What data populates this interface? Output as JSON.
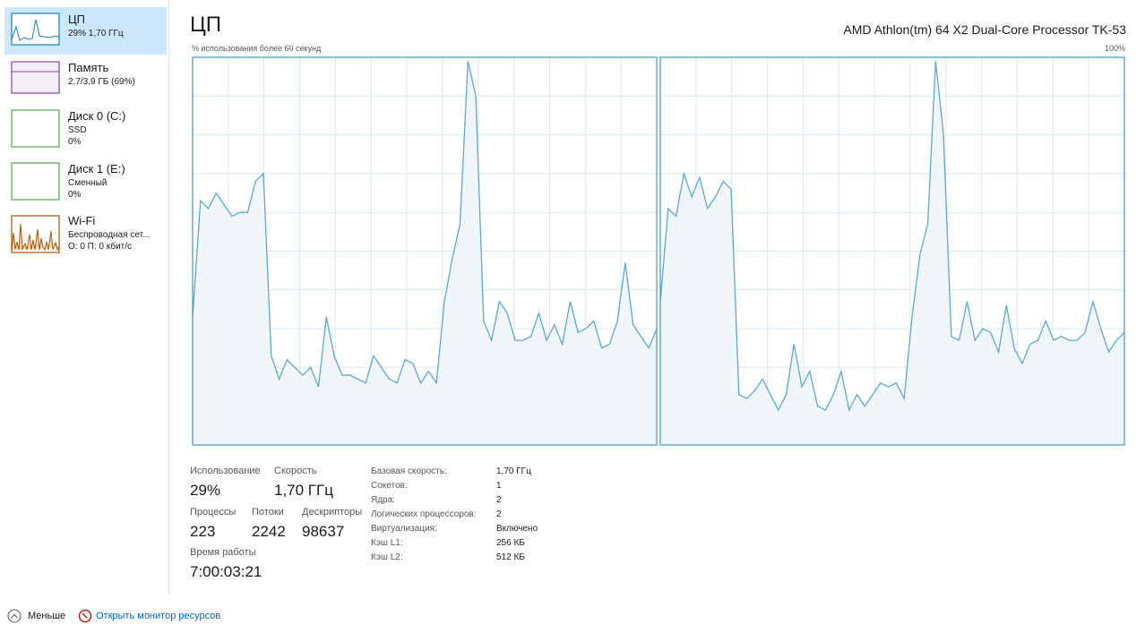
{
  "sidebar": [
    {
      "title": "ЦП",
      "details": [
        "29% 1,70 ГГц"
      ]
    },
    {
      "title": "Память",
      "details": [
        "2,7/3,9 ГБ (69%)"
      ]
    },
    {
      "title": "Диск 0 (C:)",
      "details": [
        "SSD",
        "0%"
      ]
    },
    {
      "title": "Диск 1 (E:)",
      "details": [
        "Сменный",
        "0%"
      ]
    },
    {
      "title": "Wi-Fi",
      "details": [
        "Беспроводная сет...",
        "О: 0 П: 0 кбит/с"
      ]
    }
  ],
  "header": {
    "title": "ЦП",
    "processor": "AMD Athlon(tm) 64 X2 Dual-Core Processor TK-53",
    "graph_caption": "% использования более 60 секунд",
    "graph_max": "100%"
  },
  "graphs": [
    {
      "ylim": [
        0,
        100
      ],
      "color": "#5ca8d0",
      "values": [
        33,
        63,
        61,
        65,
        62,
        59,
        60,
        60,
        68,
        70,
        23,
        17,
        22,
        20,
        18,
        20,
        15,
        33,
        23,
        18,
        18,
        17,
        16,
        23,
        20,
        17,
        16,
        22,
        21,
        16,
        19,
        16,
        37,
        48,
        57,
        99,
        90,
        32,
        27,
        37,
        34,
        27,
        27,
        28,
        34,
        27,
        31,
        26,
        37,
        29,
        30,
        32,
        25,
        26,
        32,
        47,
        31,
        28,
        25,
        30
      ]
    },
    {
      "ylim": [
        0,
        100
      ],
      "color": "#5ca8d0",
      "values": [
        37,
        61,
        59,
        70,
        64,
        69,
        61,
        64,
        68,
        66,
        13,
        12,
        14,
        17,
        13,
        9,
        13,
        26,
        15,
        19,
        10,
        9,
        13,
        19,
        9,
        13,
        10,
        13,
        16,
        15,
        16,
        12,
        33,
        49,
        57,
        99,
        80,
        28,
        27,
        37,
        27,
        30,
        29,
        24,
        36,
        25,
        21,
        26,
        27,
        32,
        27,
        28,
        27,
        27,
        29,
        37,
        30,
        24,
        27,
        29
      ]
    }
  ],
  "stats": [
    {
      "label": "Использование",
      "value": "29%"
    },
    {
      "label": "Скорость",
      "value": "1,70 ГГц"
    },
    {
      "label": "Процессы",
      "value": "223"
    },
    {
      "label": "Потоки",
      "value": "2242"
    },
    {
      "label": "Дескрипторы",
      "value": "98637"
    },
    {
      "label": "Время работы",
      "value": "7:00:03:21"
    }
  ],
  "details": [
    [
      "Базовая скорость:",
      "1,70 ГГц"
    ],
    [
      "Сокетов:",
      "1"
    ],
    [
      "Ядра:",
      "2"
    ],
    [
      "Логических процессоров:",
      "2"
    ],
    [
      "Виртуализация:",
      "Включено"
    ],
    [
      "Кэш L1:",
      "256 КБ"
    ],
    [
      "Кэш L2:",
      "512 КБ"
    ]
  ],
  "footer": {
    "less": "Меньше",
    "monitor": "Открыть монитор ресурсов"
  }
}
